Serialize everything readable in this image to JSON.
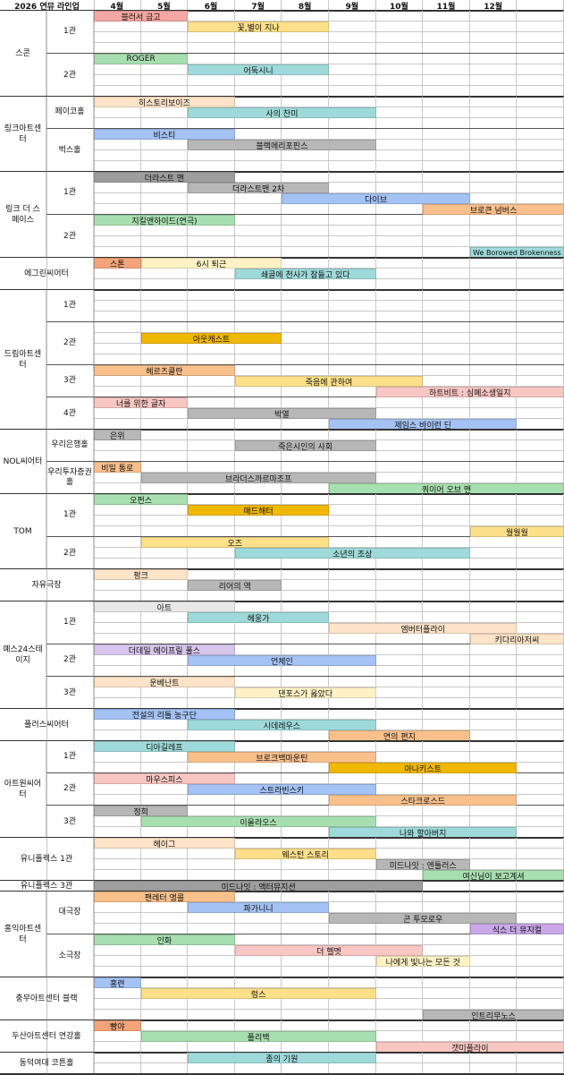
{
  "header": {
    "title": "2026 연뮤 라인업",
    "months": [
      "4월",
      "5월",
      "6월",
      "7월",
      "8월",
      "9월",
      "10월",
      "11월",
      "12월"
    ]
  },
  "colors": {
    "red": "#f4a7a3",
    "yellow": "#fde08a",
    "green": "#a8dfb0",
    "teal": "#9fdada",
    "peach": "#fde3c8",
    "blue": "#a4c2f4",
    "gray": "#b7b7b7",
    "lightgray": "#e8e8e8",
    "orange": "#f9c08c",
    "gold": "#f1b800",
    "lavender": "#d9c6ee",
    "pink": "#f9c7c3",
    "darkgray": "#9e9e9e",
    "lightyellow": "#fff2c4",
    "purple": "#c9a7e8",
    "salmon": "#f4a47a"
  },
  "venues": [
    {
      "name": "스콘",
      "halls": [
        {
          "name": "1관",
          "rows": 4,
          "bars": [
            {
              "row": 0,
              "start": 0,
              "end": 2,
              "label": "블러서 금고",
              "color": "red"
            },
            {
              "row": 1,
              "start": 2,
              "end": 5,
              "label": "꽃,별이 지나",
              "color": "yellow"
            }
          ]
        },
        {
          "name": "2관",
          "rows": 4,
          "bars": [
            {
              "row": 0,
              "start": 0,
              "end": 2,
              "label": "ROGER",
              "color": "green"
            },
            {
              "row": 1,
              "start": 2,
              "end": 5,
              "label": "어둑시니",
              "color": "teal"
            }
          ]
        }
      ]
    },
    {
      "name": "링크아트센터",
      "halls": [
        {
          "name": "페이코홀",
          "rows": 3,
          "bars": [
            {
              "row": 0,
              "start": 0,
              "end": 3,
              "label": "히스토리보이즈",
              "color": "peach"
            },
            {
              "row": 1,
              "start": 2,
              "end": 6,
              "label": "사의 찬미",
              "color": "teal"
            }
          ]
        },
        {
          "name": "벅스홀",
          "rows": 4,
          "bars": [
            {
              "row": 0,
              "start": 0,
              "end": 3,
              "label": "비스티",
              "color": "blue"
            },
            {
              "row": 1,
              "start": 2,
              "end": 6,
              "label": "블랙메리포핀스",
              "color": "gray"
            }
          ]
        }
      ]
    },
    {
      "name": "링크 더 스페이스",
      "halls": [
        {
          "name": "1관",
          "rows": 4,
          "bars": [
            {
              "row": 0,
              "start": 0,
              "end": 3,
              "label": "더라스트 맨",
              "color": "darkgray"
            },
            {
              "row": 1,
              "start": 2,
              "end": 5,
              "label": "더라스트맨 2차",
              "color": "gray"
            },
            {
              "row": 2,
              "start": 4,
              "end": 8,
              "label": "다이브",
              "color": "blue"
            },
            {
              "row": 3,
              "start": 7,
              "end": 10,
              "label": "브로큰 넘버스",
              "color": "orange"
            }
          ]
        },
        {
          "name": "2관",
          "rows": 4,
          "bars": [
            {
              "row": 0,
              "start": 0,
              "end": 3,
              "label": "지킬앤하이드(연극)",
              "color": "green"
            },
            {
              "row": 3,
              "start": 8,
              "end": 10,
              "label": "We Borowed Brokenness",
              "color": "teal"
            }
          ]
        }
      ]
    },
    {
      "name": "에그린씨어터",
      "halls": [
        {
          "name": "",
          "rows": 3,
          "bars": [
            {
              "row": 0,
              "start": 0,
              "end": 1,
              "label": "스톤",
              "color": "salmon"
            },
            {
              "row": 0,
              "start": 1,
              "end": 4,
              "label": "6시 퇴근",
              "color": "lightyellow"
            },
            {
              "row": 1,
              "start": 3,
              "end": 6,
              "label": "쇄골에 천사가 잠들고 있다",
              "color": "teal"
            }
          ]
        }
      ]
    },
    {
      "name": "드림아트센터",
      "halls": [
        {
          "name": "1관",
          "rows": 3,
          "bars": []
        },
        {
          "name": "2관",
          "rows": 4,
          "bars": [
            {
              "row": 1,
              "start": 1,
              "end": 4,
              "label": "아웃캐스트",
              "color": "gold"
            }
          ]
        },
        {
          "name": "3관",
          "rows": 3,
          "bars": [
            {
              "row": 0,
              "start": 0,
              "end": 3,
              "label": "헤르츠클란",
              "color": "orange"
            },
            {
              "row": 1,
              "start": 3,
              "end": 7,
              "label": "죽음에 관하여",
              "color": "yellow"
            },
            {
              "row": 2,
              "start": 6,
              "end": 10,
              "label": "하트비트 : 심폐소생일지",
              "color": "pink"
            }
          ]
        },
        {
          "name": "4관",
          "rows": 3,
          "bars": [
            {
              "row": 0,
              "start": 0,
              "end": 2,
              "label": "너를 위한 글자",
              "color": "pink"
            },
            {
              "row": 1,
              "start": 2,
              "end": 6,
              "label": "박열",
              "color": "gray"
            },
            {
              "row": 2,
              "start": 5,
              "end": 9,
              "label": "제임스 바이런 딘",
              "color": "blue"
            }
          ]
        }
      ]
    },
    {
      "name": "NOL씨어터",
      "halls": [
        {
          "name": "우리은행홀",
          "rows": 3,
          "bars": [
            {
              "row": 0,
              "start": 0,
              "end": 1,
              "label": "은위",
              "color": "gray"
            },
            {
              "row": 1,
              "start": 3,
              "end": 6,
              "label": "죽은시인의 사회",
              "color": "gray"
            }
          ]
        },
        {
          "name": "우리투자증권홀",
          "rows": 3,
          "bars": [
            {
              "row": 0,
              "start": 0,
              "end": 1,
              "label": "비밀 통로",
              "color": "orange"
            },
            {
              "row": 1,
              "start": 1,
              "end": 6,
              "label": "브라더스까르마조프",
              "color": "gray"
            },
            {
              "row": 2,
              "start": 5,
              "end": 10,
              "label": "쿼이어 오브 맨",
              "color": "green"
            }
          ]
        }
      ]
    },
    {
      "name": "TOM",
      "halls": [
        {
          "name": "1관",
          "rows": 4,
          "bars": [
            {
              "row": 0,
              "start": 0,
              "end": 2,
              "label": "오펀스",
              "color": "green"
            },
            {
              "row": 1,
              "start": 2,
              "end": 5,
              "label": "매드해터",
              "color": "gold"
            },
            {
              "row": 3,
              "start": 8,
              "end": 10,
              "label": "월월월",
              "color": "yellow"
            }
          ]
        },
        {
          "name": "2관",
          "rows": 3,
          "bars": [
            {
              "row": 0,
              "start": 1,
              "end": 5,
              "label": "오즈",
              "color": "yellow"
            },
            {
              "row": 1,
              "start": 3,
              "end": 8,
              "label": "소년의 조상",
              "color": "teal"
            }
          ]
        }
      ]
    },
    {
      "name": "자유극장",
      "halls": [
        {
          "name": "",
          "rows": 3,
          "bars": [
            {
              "row": 0,
              "start": 0,
              "end": 2,
              "label": "펑크",
              "color": "peach"
            },
            {
              "row": 1,
              "start": 2,
              "end": 4,
              "label": "리어의 역",
              "color": "gray"
            }
          ]
        }
      ]
    },
    {
      "name": "예스24스테이지",
      "halls": [
        {
          "name": "1관",
          "rows": 4,
          "bars": [
            {
              "row": 0,
              "start": 0,
              "end": 3,
              "label": "아트",
              "color": "lightgray"
            },
            {
              "row": 1,
              "start": 2,
              "end": 5,
              "label": "헤웅가",
              "color": "teal"
            },
            {
              "row": 2,
              "start": 5,
              "end": 9,
              "label": "엠버터플라이",
              "color": "peach"
            },
            {
              "row": 3,
              "start": 8,
              "end": 10,
              "label": "키다리아저씨",
              "color": "peach"
            }
          ]
        },
        {
          "name": "2관",
          "rows": 3,
          "bars": [
            {
              "row": 0,
              "start": 0,
              "end": 3,
              "label": "더데일 에이프릴 풀스",
              "color": "lavender"
            },
            {
              "row": 1,
              "start": 2,
              "end": 6,
              "label": "언체인",
              "color": "blue"
            }
          ]
        },
        {
          "name": "3관",
          "rows": 3,
          "bars": [
            {
              "row": 0,
              "start": 0,
              "end": 3,
              "label": "운베난트",
              "color": "peach"
            },
            {
              "row": 1,
              "start": 3,
              "end": 6,
              "label": "댄포스가 옳았다",
              "color": "lightyellow"
            }
          ]
        }
      ]
    },
    {
      "name": "플러스씨어터",
      "halls": [
        {
          "name": "",
          "rows": 3,
          "bars": [
            {
              "row": 0,
              "start": 0,
              "end": 3,
              "label": "전설의 리틀 농구단",
              "color": "blue"
            },
            {
              "row": 1,
              "start": 2,
              "end": 6,
              "label": "시데레우스",
              "color": "teal"
            },
            {
              "row": 2,
              "start": 5,
              "end": 8,
              "label": "연의 편지",
              "color": "orange"
            }
          ]
        }
      ]
    },
    {
      "name": "아트원씨어터",
      "halls": [
        {
          "name": "1관",
          "rows": 3,
          "bars": [
            {
              "row": 0,
              "start": 0,
              "end": 3,
              "label": "디아길레프",
              "color": "teal"
            },
            {
              "row": 1,
              "start": 2,
              "end": 6,
              "label": "브로크백마운틴",
              "color": "orange"
            },
            {
              "row": 2,
              "start": 5,
              "end": 9,
              "label": "아나키스트",
              "color": "gold"
            }
          ]
        },
        {
          "name": "2관",
          "rows": 3,
          "bars": [
            {
              "row": 0,
              "start": 0,
              "end": 3,
              "label": "마우스피스",
              "color": "pink"
            },
            {
              "row": 1,
              "start": 2,
              "end": 6,
              "label": "스트라빈스키",
              "color": "blue"
            },
            {
              "row": 2,
              "start": 5,
              "end": 9,
              "label": "스타크로스드",
              "color": "orange"
            }
          ]
        },
        {
          "name": "3관",
          "rows": 3,
          "bars": [
            {
              "row": 0,
              "start": 0,
              "end": 2,
              "label": "정희",
              "color": "gray"
            },
            {
              "row": 1,
              "start": 1,
              "end": 6,
              "label": "이올라오스",
              "color": "green"
            },
            {
              "row": 2,
              "start": 5,
              "end": 9,
              "label": "나와 할아버지",
              "color": "teal"
            }
          ]
        }
      ]
    },
    {
      "name": "유니플렉스 1관",
      "halls": [
        {
          "name": "",
          "rows": 4,
          "bars": [
            {
              "row": 0,
              "start": 0,
              "end": 3,
              "label": "헤이그",
              "color": "peach"
            },
            {
              "row": 1,
              "start": 3,
              "end": 6,
              "label": "웨스턴 스토리",
              "color": "yellow"
            },
            {
              "row": 2,
              "start": 6,
              "end": 8,
              "label": "미드나잇 : 엔틀러스",
              "color": "gray"
            },
            {
              "row": 3,
              "start": 7,
              "end": 10,
              "label": "여신님이 보고계셔",
              "color": "green"
            }
          ]
        }
      ]
    },
    {
      "name": "유니플렉스 3관",
      "halls": [
        {
          "name": "",
          "rows": 1,
          "bars": [
            {
              "row": 0,
              "start": 0,
              "end": 7,
              "label": "미드나잇 : 액터뮤지션",
              "color": "darkgray"
            }
          ]
        }
      ]
    },
    {
      "name": "홍익아트센터",
      "halls": [
        {
          "name": "대극장",
          "rows": 4,
          "bars": [
            {
              "row": 0,
              "start": 0,
              "end": 3,
              "label": "팬레터 앵콜",
              "color": "orange"
            },
            {
              "row": 1,
              "start": 2,
              "end": 5,
              "label": "파가니니",
              "color": "blue"
            },
            {
              "row": 2,
              "start": 5,
              "end": 9,
              "label": "곤 투모로우",
              "color": "gray"
            },
            {
              "row": 3,
              "start": 8,
              "end": 10,
              "label": "식스 더 뮤지컬",
              "color": "purple"
            }
          ]
        },
        {
          "name": "소극장",
          "rows": 4,
          "bars": [
            {
              "row": 0,
              "start": 0,
              "end": 3,
              "label": "인화",
              "color": "green"
            },
            {
              "row": 1,
              "start": 3,
              "end": 7,
              "label": "더 헬멧",
              "color": "pink"
            },
            {
              "row": 2,
              "start": 6,
              "end": 8,
              "label": "나에게 빛나는 모든 것",
              "color": "lightyellow"
            }
          ]
        }
      ]
    },
    {
      "name": "충무아트센터 블랙",
      "halls": [
        {
          "name": "",
          "rows": 4,
          "bars": [
            {
              "row": 0,
              "start": 0,
              "end": 1,
              "label": "홍련",
              "color": "blue"
            },
            {
              "row": 1,
              "start": 1,
              "end": 6,
              "label": "렁스",
              "color": "yellow"
            },
            {
              "row": 3,
              "start": 7,
              "end": 10,
              "label": "인트리무노스",
              "color": "gray"
            }
          ]
        }
      ]
    },
    {
      "name": "두산아트센터 연강홀",
      "halls": [
        {
          "name": "",
          "rows": 3,
          "bars": [
            {
              "row": 0,
              "start": 0,
              "end": 1,
              "label": "빵야",
              "color": "salmon"
            },
            {
              "row": 1,
              "start": 1,
              "end": 6,
              "label": "플리백",
              "color": "green"
            },
            {
              "row": 2,
              "start": 6,
              "end": 10,
              "label": "갯미플라이",
              "color": "pink"
            }
          ]
        }
      ]
    },
    {
      "name": "동덕여대 코튼홀",
      "halls": [
        {
          "name": "",
          "rows": 2,
          "bars": [
            {
              "row": 0,
              "start": 2,
              "end": 6,
              "label": "종의 기원",
              "color": "teal"
            }
          ]
        }
      ]
    }
  ]
}
